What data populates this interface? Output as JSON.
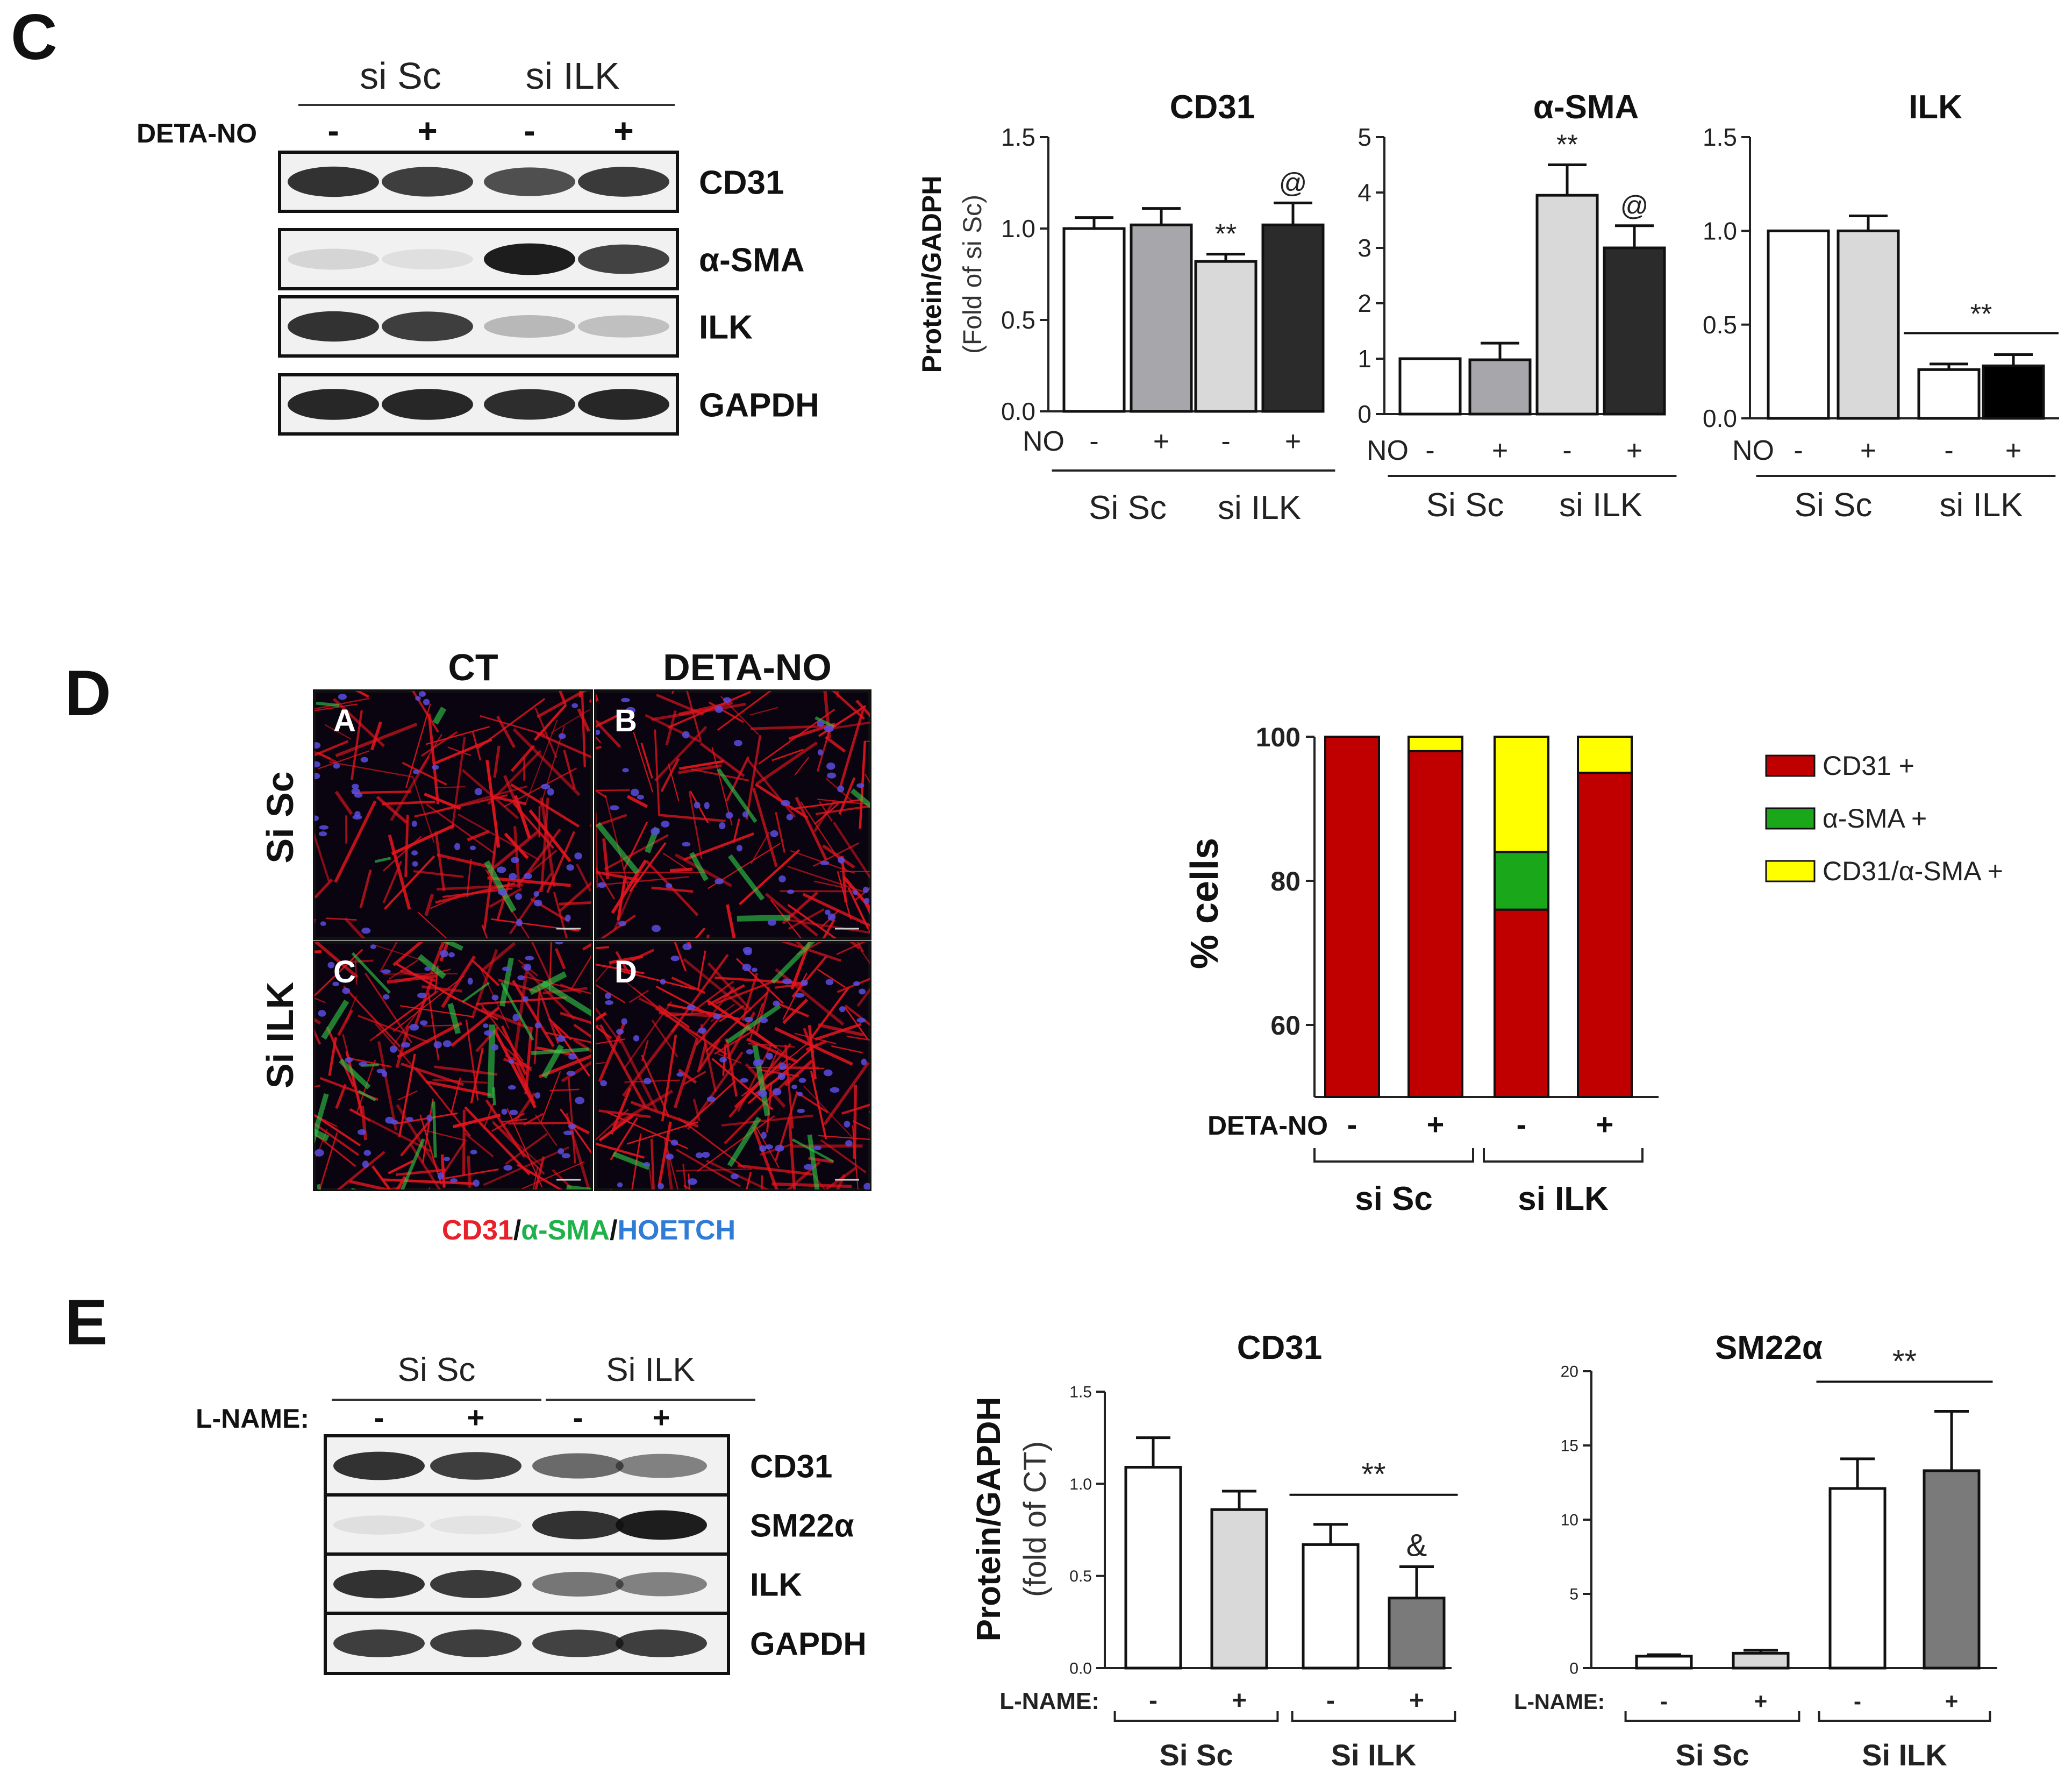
{
  "panels": {
    "C": {
      "letter": "C",
      "blot": {
        "groups": [
          "si Sc",
          "si ILK"
        ],
        "treatment_label": "DETA-NO",
        "signs": [
          "-",
          "+",
          "-",
          "+"
        ],
        "rows": [
          "CD31",
          "α-SMA",
          "ILK",
          "GAPDH"
        ],
        "intensities": [
          [
            0.85,
            0.8,
            0.72,
            0.82
          ],
          [
            0.12,
            0.08,
            0.95,
            0.78
          ],
          [
            0.85,
            0.8,
            0.25,
            0.22
          ],
          [
            0.9,
            0.9,
            0.88,
            0.9
          ]
        ]
      },
      "ylabel_main": "Protein/GADPH",
      "ylabel_sub": "(Fold of si Sc)",
      "x_prefix": "NO",
      "x_signs": [
        "-",
        "+",
        "-",
        "+"
      ],
      "x_groups": [
        "Si Sc",
        "si ILK"
      ]
    },
    "D": {
      "letter": "D",
      "col_headers": [
        "CT",
        "DETA-NO"
      ],
      "row_headers": [
        "Si Sc",
        "Si ILK"
      ],
      "image_letters": [
        "A",
        "B",
        "C",
        "D"
      ],
      "stain_caption": {
        "cd31": "CD31",
        "sep1": "/",
        "asma": "α-SMA",
        "sep2": "/",
        "hoetch": "HOETCH",
        "colors": {
          "cd31": "#e8202a",
          "asma": "#21b14b",
          "hoetch": "#2f7bd6"
        }
      }
    },
    "E": {
      "letter": "E",
      "blot": {
        "groups": [
          "Si Sc",
          "Si ILK"
        ],
        "treatment_label": "L-NAME:",
        "signs": [
          "-",
          "+",
          "-",
          "+"
        ],
        "rows": [
          "CD31",
          "SM22α",
          "ILK",
          "GAPDH"
        ],
        "intensities": [
          [
            0.85,
            0.8,
            0.6,
            0.5
          ],
          [
            0.08,
            0.06,
            0.85,
            0.95
          ],
          [
            0.85,
            0.82,
            0.55,
            0.5
          ],
          [
            0.8,
            0.8,
            0.78,
            0.8
          ]
        ]
      },
      "ylabel_main": "Protein/GAPDH",
      "ylabel_sub": "(fold of CT)",
      "x_prefix": "L-NAME:",
      "x_signs": [
        "-",
        "+",
        "-",
        "+"
      ],
      "x_groups": [
        "Si Sc",
        "Si ILK"
      ]
    }
  },
  "chart_data": [
    {
      "id": "C-CD31",
      "type": "bar",
      "title": "CD31",
      "categories": [
        "-",
        "+",
        "-",
        "+"
      ],
      "values": [
        1.0,
        1.02,
        0.82,
        1.02
      ],
      "errors": [
        0.06,
        0.09,
        0.04,
        0.12
      ],
      "colors": [
        "#ffffff",
        "#a7a7ab",
        "#d9d9d9",
        "#2b2b2b"
      ],
      "ylim": [
        0,
        1.5
      ],
      "yticks": [
        "0.0",
        "0.5",
        "1.0",
        "1.5"
      ],
      "yticks_v": [
        0,
        0.5,
        1.0,
        1.5
      ],
      "annotations": [
        {
          "bar": 2,
          "text": "**"
        },
        {
          "bar": 3,
          "text": "@"
        }
      ]
    },
    {
      "id": "C-aSMA",
      "type": "bar",
      "title": "α-SMA",
      "categories": [
        "-",
        "+",
        "-",
        "+"
      ],
      "values": [
        1.0,
        0.98,
        3.95,
        3.0
      ],
      "errors": [
        0.0,
        0.3,
        0.55,
        0.4
      ],
      "colors": [
        "#ffffff",
        "#a7a7ab",
        "#d9d9d9",
        "#2b2b2b"
      ],
      "ylim": [
        0,
        5
      ],
      "yticks": [
        "0",
        "1",
        "2",
        "3",
        "4",
        "5"
      ],
      "yticks_v": [
        0,
        1,
        2,
        3,
        4,
        5
      ],
      "annotations": [
        {
          "bar": 2,
          "text": "**"
        },
        {
          "bar": 3,
          "text": "@"
        }
      ]
    },
    {
      "id": "C-ILK",
      "type": "bar",
      "title": "ILK",
      "categories": [
        "-",
        "+",
        "-",
        "+"
      ],
      "values": [
        1.0,
        1.0,
        0.26,
        0.28
      ],
      "errors": [
        0.0,
        0.08,
        0.03,
        0.06
      ],
      "colors": [
        "#ffffff",
        "#d9d9d9",
        "#ffffff",
        "#000000"
      ],
      "ylim": [
        0,
        1.5
      ],
      "yticks": [
        "0.0",
        "0.5",
        "1.0",
        "1.5"
      ],
      "yticks_v": [
        0,
        0.5,
        1.0,
        1.5
      ],
      "annotations": [
        {
          "bracket": [
            2,
            3
          ],
          "text": "**"
        }
      ]
    },
    {
      "id": "D-stacked",
      "type": "bar",
      "ylabel": "% cells",
      "xprefix": "DETA-NO",
      "categories": [
        "-",
        "+",
        "-",
        "+"
      ],
      "groups": [
        "si Sc",
        "si ILK"
      ],
      "ylim": [
        50,
        100
      ],
      "yticks": [
        "60",
        "80",
        "100"
      ],
      "yticks_v": [
        60,
        80,
        100
      ],
      "series": [
        {
          "name": "CD31 +",
          "color": "#c00000",
          "values": [
            100,
            98,
            76,
            95
          ]
        },
        {
          "name": "α-SMA +",
          "color": "#1aa81a",
          "values": [
            0,
            0,
            8,
            0
          ]
        },
        {
          "name": "CD31/α-SMA +",
          "color": "#ffff00",
          "values": [
            0,
            2,
            16,
            5
          ]
        }
      ]
    },
    {
      "id": "E-CD31",
      "type": "bar",
      "title": "CD31",
      "categories": [
        "-",
        "+",
        "-",
        "+"
      ],
      "values": [
        1.09,
        0.86,
        0.67,
        0.38
      ],
      "errors": [
        0.16,
        0.1,
        0.11,
        0.17
      ],
      "colors": [
        "#ffffff",
        "#d9d9d9",
        "#ffffff",
        "#7a7a7a"
      ],
      "ylim": [
        0,
        1.5
      ],
      "yticks": [
        "0.0",
        "0.5",
        "1.0",
        "1.5"
      ],
      "yticks_v": [
        0,
        0.5,
        1.0,
        1.5
      ],
      "annotations": [
        {
          "bracket": [
            2,
            3
          ],
          "text": "**"
        },
        {
          "bar": 3,
          "text": "&"
        }
      ]
    },
    {
      "id": "E-SM22a",
      "type": "bar",
      "title": "SM22α",
      "categories": [
        "-",
        "+",
        "-",
        "+"
      ],
      "values": [
        0.8,
        1.0,
        12.1,
        13.3
      ],
      "errors": [
        0.1,
        0.2,
        2.0,
        4.0
      ],
      "colors": [
        "#ffffff",
        "#d9d9d9",
        "#ffffff",
        "#7a7a7a"
      ],
      "ylim": [
        0,
        20
      ],
      "yticks": [
        "0",
        "5",
        "10",
        "15",
        "20"
      ],
      "yticks_v": [
        0,
        5,
        10,
        15,
        20
      ],
      "annotations": [
        {
          "bracket": [
            2,
            3
          ],
          "text": "**"
        }
      ]
    }
  ]
}
